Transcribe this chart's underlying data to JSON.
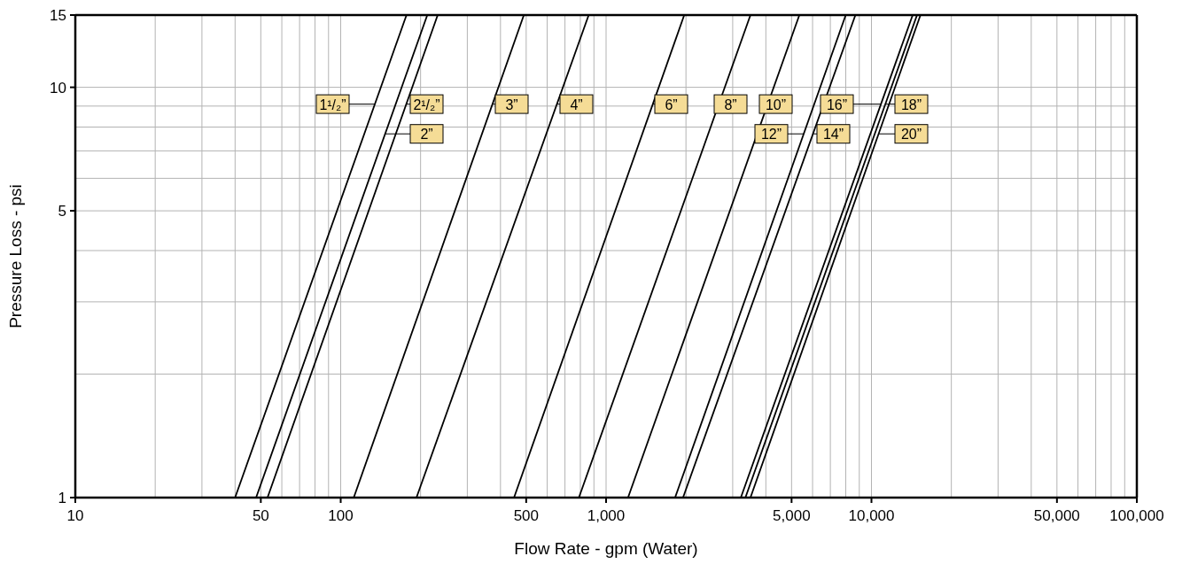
{
  "chart_data": {
    "type": "line",
    "xlabel": "Flow Rate - gpm (Water)",
    "ylabel": "Pressure Loss - psi",
    "log": "xy",
    "grid": true,
    "legend": "top",
    "xlim": [
      10,
      100000
    ],
    "ylim": [
      1,
      15
    ],
    "xticks": [
      10,
      {
        "value": 20,
        "label": null
      },
      {
        "value": 30,
        "label": null
      },
      {
        "value": 40,
        "label": null
      },
      50,
      {
        "value": 60,
        "label": null
      },
      {
        "value": 70,
        "label": null
      },
      {
        "value": 80,
        "label": null
      },
      {
        "value": 90,
        "label": null
      },
      100,
      {
        "value": 200,
        "label": null
      },
      {
        "value": 300,
        "label": null
      },
      {
        "value": 400,
        "label": null
      },
      500,
      {
        "value": 600,
        "label": null
      },
      {
        "value": 700,
        "label": null
      },
      {
        "value": 800,
        "label": null
      },
      {
        "value": 900,
        "label": null
      },
      {
        "value": 1000,
        "label": "1,000"
      },
      {
        "value": 2000,
        "label": null
      },
      {
        "value": 3000,
        "label": null
      },
      {
        "value": 4000,
        "label": null
      },
      {
        "value": 5000,
        "label": "5,000"
      },
      {
        "value": 6000,
        "label": null
      },
      {
        "value": 7000,
        "label": null
      },
      {
        "value": 8000,
        "label": null
      },
      {
        "value": 9000,
        "label": null
      },
      {
        "value": 10000,
        "label": "10,000"
      },
      {
        "value": 20000,
        "label": null
      },
      {
        "value": 30000,
        "label": null
      },
      {
        "value": 40000,
        "label": null
      },
      {
        "value": 50000,
        "label": "50,000"
      },
      {
        "value": 60000,
        "label": null
      },
      {
        "value": 70000,
        "label": null
      },
      {
        "value": 80000,
        "label": null
      },
      {
        "value": 90000,
        "label": null
      },
      {
        "value": 100000,
        "label": "100,000"
      }
    ],
    "yticks": [
      1,
      {
        "value": 2,
        "label": null
      },
      {
        "value": 3,
        "label": null
      },
      {
        "value": 4,
        "label": null
      },
      5,
      {
        "value": 6,
        "label": null
      },
      {
        "value": 7,
        "label": null
      },
      {
        "value": 8,
        "label": null
      },
      {
        "value": 9,
        "label": null
      },
      10,
      15
    ],
    "series": [
      {
        "name": "1¹/₂”",
        "color": "#000000",
        "x": [
          40,
          177
        ],
        "values": [
          1,
          15
        ]
      },
      {
        "name": "2”",
        "color": "#000000",
        "x": [
          48,
          212
        ],
        "values": [
          1,
          15
        ]
      },
      {
        "name": "2¹/₂”",
        "color": "#000000",
        "x": [
          53,
          232
        ],
        "values": [
          1,
          15
        ]
      },
      {
        "name": "3”",
        "color": "#000000",
        "x": [
          112,
          490
        ],
        "values": [
          1,
          15
        ]
      },
      {
        "name": "4”",
        "color": "#000000",
        "x": [
          193,
          860
        ],
        "values": [
          1,
          15
        ]
      },
      {
        "name": "6”",
        "color": "#000000",
        "x": [
          450,
          1970
        ],
        "values": [
          1,
          15
        ]
      },
      {
        "name": "8”",
        "color": "#000000",
        "x": [
          790,
          3500
        ],
        "values": [
          1,
          15
        ]
      },
      {
        "name": "10”",
        "color": "#000000",
        "x": [
          1210,
          5350
        ],
        "values": [
          1,
          15
        ]
      },
      {
        "name": "12”",
        "color": "#000000",
        "x": [
          1820,
          8000
        ],
        "values": [
          1,
          15
        ]
      },
      {
        "name": "14”",
        "color": "#000000",
        "x": [
          1950,
          8700
        ],
        "values": [
          1,
          15
        ]
      },
      {
        "name": "16”",
        "color": "#000000",
        "x": [
          3220,
          14300
        ],
        "values": [
          1,
          15
        ]
      },
      {
        "name": "18”",
        "color": "#000000",
        "x": [
          3350,
          14850
        ],
        "values": [
          1,
          15
        ]
      },
      {
        "name": "20”",
        "color": "#000000",
        "x": [
          3500,
          15300
        ],
        "values": [
          1,
          15
        ]
      }
    ]
  }
}
